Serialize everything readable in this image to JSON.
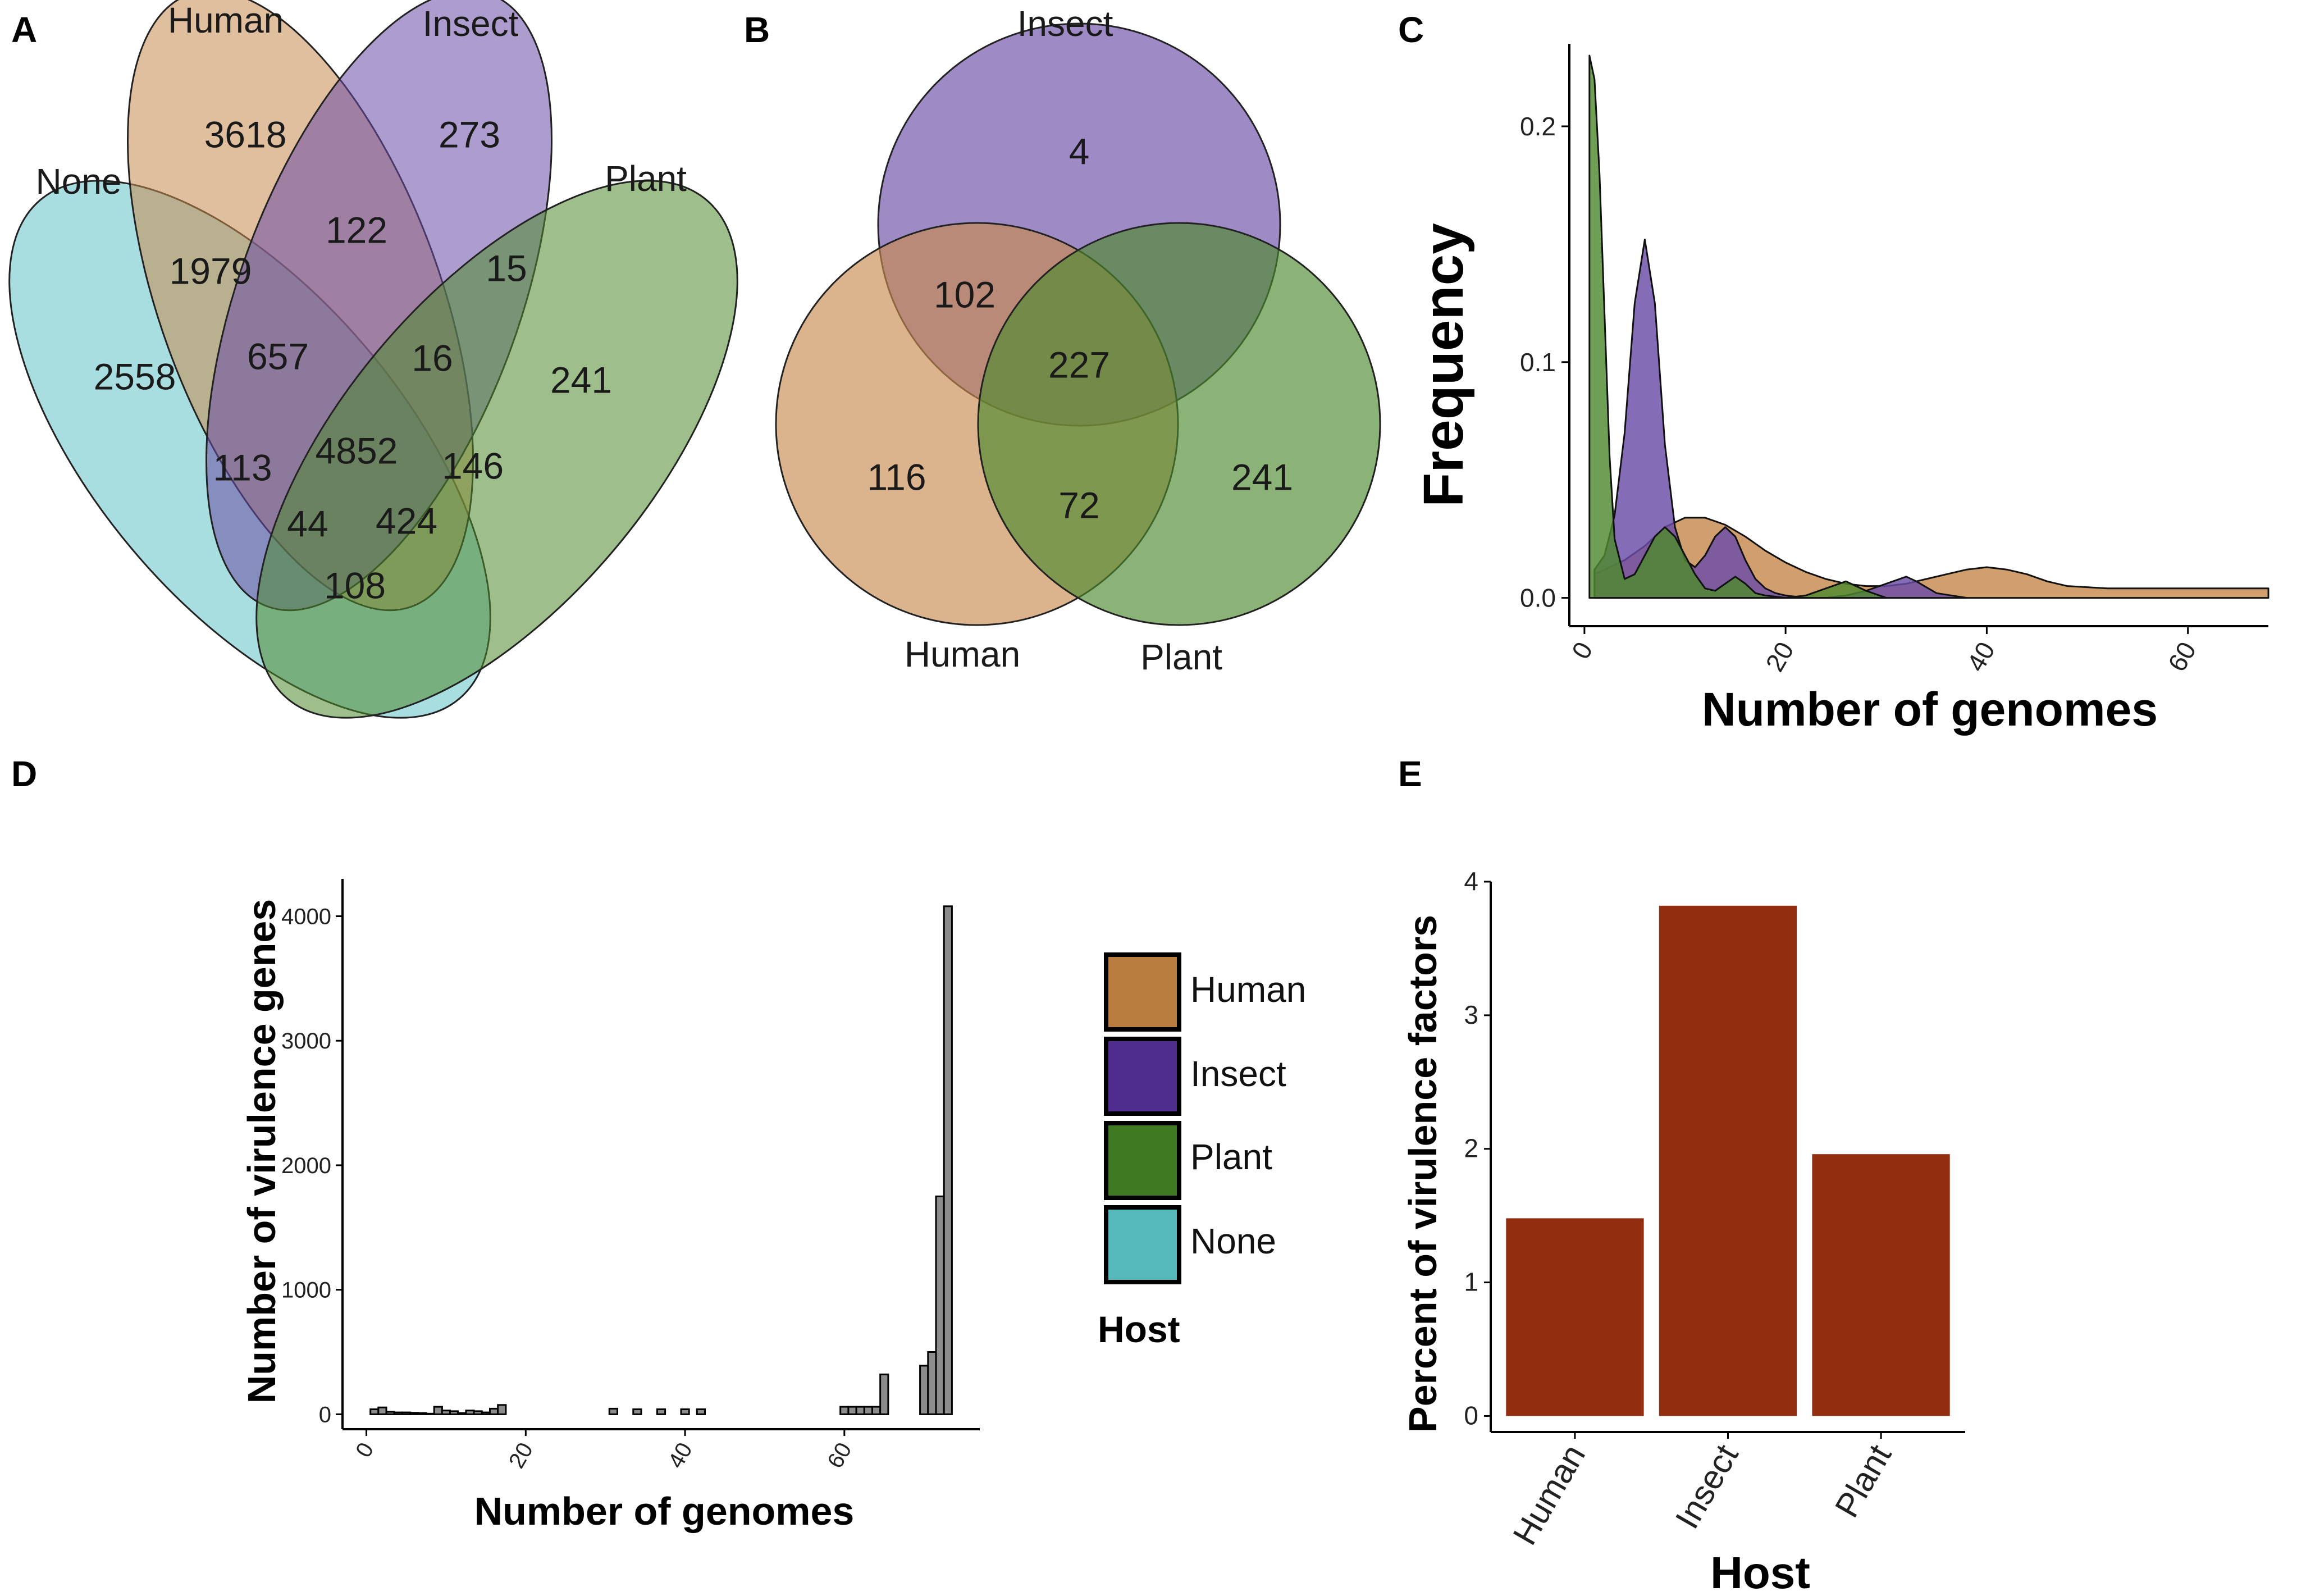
{
  "panels": {
    "a": "A",
    "b": "B",
    "c": "C",
    "d": "D",
    "e": "E"
  },
  "colors": {
    "human": "#C78A4E",
    "insect": "#6A4CA6",
    "plant": "#4E8A2E",
    "none": "#63C3C6",
    "legend_human": "#B87C3E",
    "legend_insect": "#4F2D8F",
    "legend_plant": "#3F7A22",
    "legend_none": "#55B8BA",
    "bar_d": "#8C8C8C",
    "bar_e": "#922E10"
  },
  "chart_data": [
    {
      "type": "venn",
      "panel": "A",
      "sets": [
        "None",
        "Human",
        "Insect",
        "Plant"
      ],
      "regions": [
        {
          "sets": [
            "Human"
          ],
          "value": 3618
        },
        {
          "sets": [
            "Insect"
          ],
          "value": 273
        },
        {
          "sets": [
            "Human",
            "Insect"
          ],
          "value": 122
        },
        {
          "sets": [
            "None",
            "Human"
          ],
          "value": 1979
        },
        {
          "sets": [
            "Insect",
            "Plant"
          ],
          "value": 15
        },
        {
          "sets": [
            "None"
          ],
          "value": 2558
        },
        {
          "sets": [
            "None",
            "Human",
            "Insect"
          ],
          "value": 657
        },
        {
          "sets": [
            "Human",
            "Insect",
            "Plant"
          ],
          "value": 16
        },
        {
          "sets": [
            "Plant"
          ],
          "value": 241
        },
        {
          "sets": [
            "None",
            "Insect"
          ],
          "value": 113
        },
        {
          "sets": [
            "None",
            "Human",
            "Insect",
            "Plant"
          ],
          "value": 4852
        },
        {
          "sets": [
            "Human",
            "Plant"
          ],
          "value": 146
        },
        {
          "sets": [
            "None",
            "Insect",
            "Plant"
          ],
          "value": 44
        },
        {
          "sets": [
            "None",
            "Human",
            "Plant"
          ],
          "value": 424
        },
        {
          "sets": [
            "None",
            "Plant"
          ],
          "value": 108
        }
      ]
    },
    {
      "type": "venn",
      "panel": "B",
      "sets": [
        "Insect",
        "Human",
        "Plant"
      ],
      "regions": [
        {
          "sets": [
            "Insect"
          ],
          "value": 4
        },
        {
          "sets": [
            "Human",
            "Insect"
          ],
          "value": 102
        },
        {
          "sets": [
            "Human",
            "Insect",
            "Plant"
          ],
          "value": 227
        },
        {
          "sets": [
            "Human"
          ],
          "value": 116
        },
        {
          "sets": [
            "Human",
            "Plant"
          ],
          "value": 72
        },
        {
          "sets": [
            "Plant"
          ],
          "value": 241
        }
      ]
    },
    {
      "type": "area",
      "panel": "C",
      "title": "",
      "xlabel": "Number of genomes",
      "ylabel": "Frequency",
      "xlim": [
        -1.5,
        68
      ],
      "ylim": [
        -0.012,
        0.235
      ],
      "xticks": [
        0,
        20,
        40,
        60
      ],
      "yticks": [
        0.0,
        0.1,
        0.2
      ],
      "ytick_labels": [
        "0.0",
        "0.1",
        "0.2"
      ],
      "series": [
        {
          "name": "Human",
          "x": [
            1,
            2,
            4,
            6,
            8,
            10,
            12,
            14,
            16,
            18,
            20,
            22,
            24,
            26,
            28,
            30,
            32,
            34,
            36,
            38,
            40,
            42,
            44,
            46,
            48,
            52,
            56,
            60,
            64,
            68
          ],
          "values": [
            0.01,
            0.012,
            0.016,
            0.022,
            0.03,
            0.034,
            0.034,
            0.031,
            0.026,
            0.02,
            0.015,
            0.011,
            0.008,
            0.006,
            0.005,
            0.005,
            0.006,
            0.008,
            0.01,
            0.012,
            0.013,
            0.012,
            0.01,
            0.007,
            0.005,
            0.004,
            0.004,
            0.004,
            0.004,
            0.004
          ]
        },
        {
          "name": "Insect",
          "x": [
            1,
            2,
            3,
            4,
            5,
            6,
            7,
            8,
            9,
            10,
            11,
            12,
            13,
            14,
            15,
            16,
            17,
            18,
            19,
            20,
            22,
            24,
            26,
            28,
            30,
            32,
            33,
            35,
            38
          ],
          "values": [
            0.012,
            0.018,
            0.035,
            0.07,
            0.125,
            0.152,
            0.125,
            0.065,
            0.03,
            0.016,
            0.013,
            0.018,
            0.026,
            0.03,
            0.026,
            0.016,
            0.008,
            0.004,
            0.002,
            0.001,
            0.0,
            0.0,
            0.001,
            0.003,
            0.006,
            0.009,
            0.007,
            0.002,
            0.0
          ]
        },
        {
          "name": "Plant",
          "x": [
            0.5,
            1,
            1.5,
            2,
            2.5,
            3,
            4,
            5,
            6,
            7,
            8,
            9,
            10,
            11,
            12,
            13,
            14,
            15,
            16,
            17,
            18,
            20,
            22,
            24,
            26,
            28,
            30
          ],
          "values": [
            0.23,
            0.22,
            0.18,
            0.12,
            0.06,
            0.025,
            0.008,
            0.01,
            0.018,
            0.026,
            0.03,
            0.026,
            0.018,
            0.01,
            0.004,
            0.003,
            0.006,
            0.009,
            0.006,
            0.002,
            0.001,
            0.0,
            0.001,
            0.004,
            0.007,
            0.003,
            0.0
          ]
        }
      ]
    },
    {
      "type": "bar",
      "panel": "D",
      "title": "",
      "xlabel": "Number of genomes",
      "ylabel": "Number of virulence genes",
      "xlim": [
        -3,
        77
      ],
      "ylim": [
        -120,
        4300
      ],
      "xticks": [
        0,
        20,
        40,
        60
      ],
      "yticks": [
        0,
        1000,
        2000,
        3000,
        4000
      ],
      "x": [
        1,
        2,
        3,
        4,
        5,
        6,
        7,
        8,
        9,
        10,
        11,
        12,
        13,
        14,
        15,
        16,
        17,
        31,
        34,
        37,
        40,
        42,
        60,
        61,
        62,
        63,
        64,
        65,
        70,
        71,
        72,
        73
      ],
      "values": [
        40,
        55,
        20,
        15,
        15,
        12,
        10,
        5,
        60,
        30,
        25,
        10,
        30,
        25,
        15,
        45,
        75,
        45,
        40,
        40,
        40,
        40,
        60,
        60,
        60,
        60,
        60,
        320,
        390,
        500,
        1750,
        4080
      ]
    },
    {
      "type": "bar",
      "panel": "E",
      "title": "",
      "xlabel": "Host",
      "ylabel": "Percent of virulence factors",
      "categories": [
        "Human",
        "Insect",
        "Plant"
      ],
      "values": [
        1.48,
        3.82,
        1.96
      ],
      "ylim": [
        -0.12,
        4.0
      ],
      "yticks": [
        0,
        1,
        2,
        3,
        4
      ]
    }
  ],
  "legend": {
    "title": "Host",
    "items": [
      {
        "label": "Human",
        "color_key": "legend_human"
      },
      {
        "label": "Insect",
        "color_key": "legend_insect"
      },
      {
        "label": "Plant",
        "color_key": "legend_plant"
      },
      {
        "label": "None",
        "color_key": "legend_none"
      }
    ]
  }
}
